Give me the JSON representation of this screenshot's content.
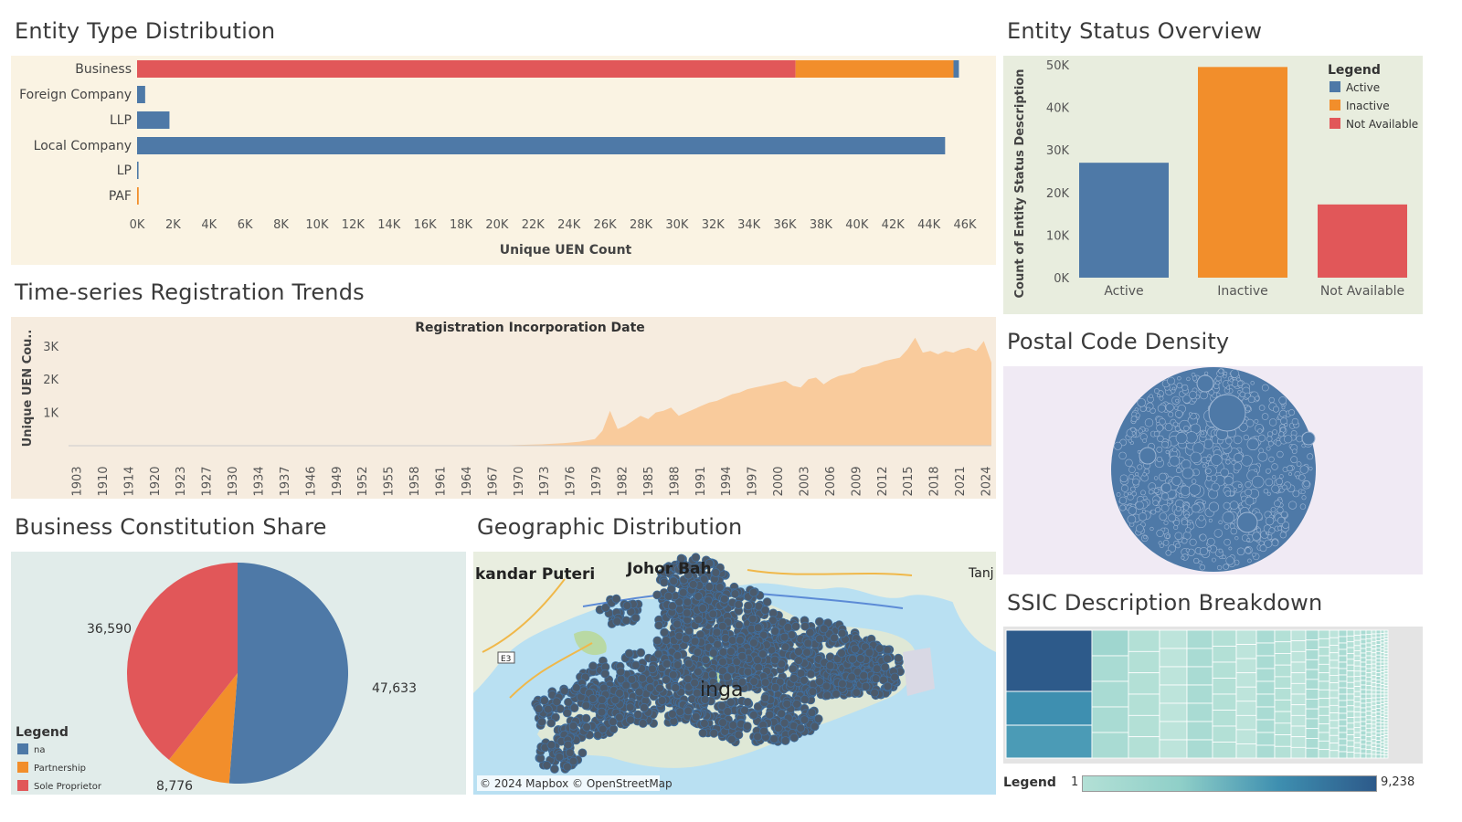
{
  "colors": {
    "blue": "#4e79a7",
    "orange": "#f28e2b",
    "red": "#e15759",
    "area": "#f9cb9c",
    "bg_cream": "#faf3e3",
    "bg_green": "#e8edde",
    "bg_teal": "#e1ecea",
    "bg_lavender": "#f0eaf4",
    "bg_peach": "#f6ecdf"
  },
  "entity_type": {
    "title": "Entity Type Distribution",
    "xlabel": "Unique UEN Count",
    "ticks": [
      "0K",
      "2K",
      "4K",
      "6K",
      "8K",
      "10K",
      "12K",
      "14K",
      "16K",
      "18K",
      "20K",
      "22K",
      "24K",
      "26K",
      "28K",
      "30K",
      "32K",
      "34K",
      "36K",
      "38K",
      "40K",
      "42K",
      "44K",
      "46K"
    ]
  },
  "entity_status": {
    "title": "Entity Status Overview",
    "ylabel": "Count of Entity Status Description",
    "legend_title": "Legend",
    "yticks": [
      "0K",
      "10K",
      "20K",
      "30K",
      "40K",
      "50K"
    ]
  },
  "time_series": {
    "title": "Time-series Registration Trends",
    "subtitle": "Registration Incorporation Date",
    "ylabel": "Unique UEN Cou..",
    "yticks": [
      "1K",
      "2K",
      "3K"
    ]
  },
  "constitution": {
    "title": "Business Constitution Share",
    "legend_title": "Legend"
  },
  "geo": {
    "title": "Geographic Distribution",
    "labels": [
      "kandar Puteri",
      "Johor Bah",
      "Tanj",
      "inga",
      "E3"
    ],
    "attribution": "© 2024 Mapbox © OpenStreetMap"
  },
  "postal": {
    "title": "Postal Code Density"
  },
  "ssic": {
    "title": "SSIC Description Breakdown",
    "legend_label": "Legend",
    "legend_min": "1",
    "legend_max": "9,238"
  },
  "chart_data": [
    {
      "type": "bar",
      "orientation": "horizontal",
      "title": "Entity Type Distribution",
      "xlabel": "Unique UEN Count",
      "categories": [
        "Business",
        "Foreign Company",
        "LLP",
        "Local Company",
        "LP",
        "PAF"
      ],
      "series": [
        {
          "name": "Sole Proprietor",
          "color": "#e15759",
          "values": [
            36590,
            0,
            0,
            0,
            0,
            0
          ]
        },
        {
          "name": "Partnership",
          "color": "#f28e2b",
          "values": [
            8776,
            0,
            0,
            0,
            0,
            90
          ]
        },
        {
          "name": "na",
          "color": "#4e79a7",
          "values": [
            300,
            450,
            1800,
            44900,
            80,
            0
          ]
        }
      ],
      "xlim": [
        0,
        46000
      ]
    },
    {
      "type": "bar",
      "title": "Entity Status Overview",
      "ylabel": "Count of Entity Status Description",
      "categories": [
        "Active",
        "Inactive",
        "Not Available"
      ],
      "values": [
        27000,
        49500,
        17200
      ],
      "colors": [
        "#4e79a7",
        "#f28e2b",
        "#e15759"
      ],
      "legend": [
        "Active",
        "Inactive",
        "Not Available"
      ],
      "legend_position": "top-right",
      "ylim": [
        0,
        50000
      ]
    },
    {
      "type": "area",
      "title": "Registration Incorporation Date",
      "ylabel": "Unique UEN Cou..",
      "x_tick_labels": [
        "1903",
        "1910",
        "1914",
        "1920",
        "1923",
        "1927",
        "1930",
        "1934",
        "1937",
        "1946",
        "1949",
        "1952",
        "1955",
        "1958",
        "1961",
        "1964",
        "1967",
        "1970",
        "1973",
        "1976",
        "1979",
        "1982",
        "1985",
        "1988",
        "1991",
        "1994",
        "1997",
        "2000",
        "2003",
        "2006",
        "2009",
        "2012",
        "2015",
        "2018",
        "2021",
        "2024"
      ],
      "x": [
        1903,
        1960,
        1965,
        1968,
        1970,
        1972,
        1973,
        1974,
        1975,
        1976,
        1977,
        1978,
        1979,
        1980,
        1981,
        1982,
        1983,
        1984,
        1985,
        1986,
        1987,
        1988,
        1989,
        1990,
        1991,
        1992,
        1993,
        1994,
        1995,
        1996,
        1997,
        1998,
        1999,
        2000,
        2001,
        2002,
        2003,
        2004,
        2005,
        2006,
        2007,
        2008,
        2009,
        2010,
        2011,
        2012,
        2013,
        2014,
        2015,
        2016,
        2017,
        2018,
        2019,
        2020,
        2021,
        2022,
        2023,
        2024
      ],
      "y": [
        0,
        10,
        40,
        80,
        120,
        200,
        450,
        1050,
        500,
        600,
        750,
        900,
        800,
        1000,
        1050,
        1150,
        900,
        1000,
        1100,
        1200,
        1300,
        1350,
        1450,
        1550,
        1600,
        1700,
        1750,
        1800,
        1850,
        1900,
        1950,
        1800,
        1750,
        2000,
        2050,
        1850,
        2000,
        2100,
        2150,
        2200,
        2350,
        2400,
        2450,
        2550,
        2600,
        2650,
        2900,
        3250,
        2800,
        2850,
        2750,
        2850,
        2800,
        2900,
        2950,
        2850,
        3150,
        2500
      ],
      "yticks": [
        1000,
        2000,
        3000
      ],
      "ylim": [
        0,
        3600
      ]
    },
    {
      "type": "pie",
      "title": "Business Constitution Share",
      "labels": [
        "na",
        "Partnership",
        "Sole Proprietor"
      ],
      "values": [
        47633,
        8776,
        36590
      ],
      "value_labels": [
        "47,633",
        "8,776",
        "36,590"
      ],
      "colors": [
        "#4e79a7",
        "#f28e2b",
        "#e15759"
      ],
      "legend_position": "bottom-left"
    }
  ]
}
